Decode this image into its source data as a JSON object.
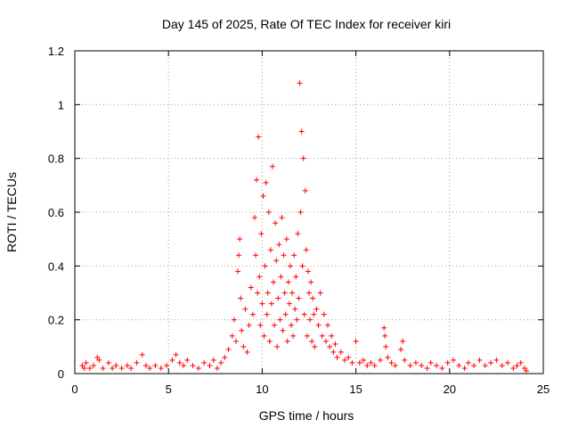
{
  "chart_data": {
    "type": "scatter",
    "title": "Day 145 of 2025, Rate Of TEC Index for receiver kiri",
    "xlabel": "GPS time / hours",
    "ylabel": "ROTI / TECUs",
    "xlim": [
      0,
      25
    ],
    "ylim": [
      0,
      1.2
    ],
    "xticks": [
      "0",
      "5",
      "10",
      "15",
      "20",
      "25"
    ],
    "yticks": [
      "0",
      "0.2",
      "0.4",
      "0.6",
      "0.8",
      "1",
      "1.2"
    ],
    "grid": true,
    "marker": "plus",
    "series_color": "#ff0000",
    "series": [
      {
        "points": [
          [
            0.4,
            0.03
          ],
          [
            0.5,
            0.02
          ],
          [
            0.6,
            0.04
          ],
          [
            0.8,
            0.02
          ],
          [
            1.0,
            0.03
          ],
          [
            1.2,
            0.06
          ],
          [
            1.3,
            0.05
          ],
          [
            1.5,
            0.02
          ],
          [
            1.8,
            0.04
          ],
          [
            2.0,
            0.02
          ],
          [
            2.2,
            0.03
          ],
          [
            2.5,
            0.02
          ],
          [
            2.8,
            0.03
          ],
          [
            3.0,
            0.02
          ],
          [
            3.3,
            0.04
          ],
          [
            3.6,
            0.07
          ],
          [
            3.8,
            0.03
          ],
          [
            4.0,
            0.02
          ],
          [
            4.3,
            0.03
          ],
          [
            4.6,
            0.02
          ],
          [
            4.9,
            0.03
          ],
          [
            5.2,
            0.05
          ],
          [
            5.4,
            0.07
          ],
          [
            5.6,
            0.04
          ],
          [
            5.8,
            0.03
          ],
          [
            6.0,
            0.05
          ],
          [
            6.3,
            0.03
          ],
          [
            6.6,
            0.02
          ],
          [
            6.9,
            0.04
          ],
          [
            7.2,
            0.03
          ],
          [
            7.4,
            0.05
          ],
          [
            7.6,
            0.02
          ],
          [
            7.8,
            0.04
          ],
          [
            8.0,
            0.06
          ],
          [
            8.2,
            0.09
          ],
          [
            8.4,
            0.14
          ],
          [
            8.5,
            0.2
          ],
          [
            8.6,
            0.12
          ],
          [
            8.7,
            0.38
          ],
          [
            8.75,
            0.44
          ],
          [
            8.8,
            0.5
          ],
          [
            8.85,
            0.28
          ],
          [
            8.9,
            0.16
          ],
          [
            9.0,
            0.1
          ],
          [
            9.1,
            0.24
          ],
          [
            9.2,
            0.08
          ],
          [
            9.3,
            0.18
          ],
          [
            9.4,
            0.32
          ],
          [
            9.5,
            0.22
          ],
          [
            9.6,
            0.58
          ],
          [
            9.65,
            0.44
          ],
          [
            9.7,
            0.72
          ],
          [
            9.75,
            0.3
          ],
          [
            9.8,
            0.88
          ],
          [
            9.85,
            0.36
          ],
          [
            9.9,
            0.18
          ],
          [
            9.95,
            0.52
          ],
          [
            10.0,
            0.26
          ],
          [
            10.05,
            0.66
          ],
          [
            10.1,
            0.14
          ],
          [
            10.15,
            0.4
          ],
          [
            10.2,
            0.71
          ],
          [
            10.25,
            0.22
          ],
          [
            10.3,
            0.3
          ],
          [
            10.35,
            0.6
          ],
          [
            10.4,
            0.12
          ],
          [
            10.45,
            0.46
          ],
          [
            10.5,
            0.26
          ],
          [
            10.55,
            0.77
          ],
          [
            10.6,
            0.34
          ],
          [
            10.65,
            0.18
          ],
          [
            10.7,
            0.56
          ],
          [
            10.75,
            0.42
          ],
          [
            10.8,
            0.1
          ],
          [
            10.85,
            0.28
          ],
          [
            10.9,
            0.48
          ],
          [
            10.95,
            0.2
          ],
          [
            11.0,
            0.36
          ],
          [
            11.05,
            0.58
          ],
          [
            11.1,
            0.16
          ],
          [
            11.15,
            0.44
          ],
          [
            11.2,
            0.3
          ],
          [
            11.25,
            0.22
          ],
          [
            11.3,
            0.5
          ],
          [
            11.35,
            0.12
          ],
          [
            11.4,
            0.34
          ],
          [
            11.45,
            0.26
          ],
          [
            11.5,
            0.4
          ],
          [
            11.55,
            0.18
          ],
          [
            11.6,
            0.3
          ],
          [
            11.65,
            0.14
          ],
          [
            11.7,
            0.44
          ],
          [
            11.75,
            0.24
          ],
          [
            11.8,
            0.36
          ],
          [
            11.85,
            0.2
          ],
          [
            11.9,
            0.52
          ],
          [
            11.95,
            0.28
          ],
          [
            12.0,
            1.08
          ],
          [
            12.05,
            0.6
          ],
          [
            12.1,
            0.9
          ],
          [
            12.15,
            0.4
          ],
          [
            12.2,
            0.8
          ],
          [
            12.25,
            0.22
          ],
          [
            12.3,
            0.68
          ],
          [
            12.35,
            0.46
          ],
          [
            12.4,
            0.14
          ],
          [
            12.45,
            0.38
          ],
          [
            12.5,
            0.3
          ],
          [
            12.55,
            0.2
          ],
          [
            12.6,
            0.34
          ],
          [
            12.65,
            0.12
          ],
          [
            12.7,
            0.28
          ],
          [
            12.75,
            0.22
          ],
          [
            12.8,
            0.1
          ],
          [
            12.9,
            0.24
          ],
          [
            13.0,
            0.18
          ],
          [
            13.1,
            0.3
          ],
          [
            13.2,
            0.14
          ],
          [
            13.3,
            0.22
          ],
          [
            13.4,
            0.12
          ],
          [
            13.5,
            0.18
          ],
          [
            13.6,
            0.1
          ],
          [
            13.7,
            0.14
          ],
          [
            13.8,
            0.08
          ],
          [
            13.9,
            0.11
          ],
          [
            14.0,
            0.06
          ],
          [
            14.2,
            0.08
          ],
          [
            14.4,
            0.05
          ],
          [
            14.6,
            0.06
          ],
          [
            14.8,
            0.04
          ],
          [
            15.0,
            0.12
          ],
          [
            15.2,
            0.04
          ],
          [
            15.4,
            0.05
          ],
          [
            15.6,
            0.03
          ],
          [
            15.8,
            0.04
          ],
          [
            16.0,
            0.03
          ],
          [
            16.3,
            0.05
          ],
          [
            16.5,
            0.17
          ],
          [
            16.55,
            0.14
          ],
          [
            16.6,
            0.1
          ],
          [
            16.7,
            0.06
          ],
          [
            16.9,
            0.04
          ],
          [
            17.1,
            0.03
          ],
          [
            17.4,
            0.09
          ],
          [
            17.5,
            0.12
          ],
          [
            17.6,
            0.05
          ],
          [
            17.9,
            0.03
          ],
          [
            18.2,
            0.04
          ],
          [
            18.5,
            0.03
          ],
          [
            18.8,
            0.02
          ],
          [
            19.0,
            0.04
          ],
          [
            19.3,
            0.03
          ],
          [
            19.6,
            0.02
          ],
          [
            19.9,
            0.04
          ],
          [
            20.2,
            0.05
          ],
          [
            20.5,
            0.03
          ],
          [
            20.8,
            0.02
          ],
          [
            21.0,
            0.04
          ],
          [
            21.3,
            0.03
          ],
          [
            21.6,
            0.05
          ],
          [
            21.9,
            0.03
          ],
          [
            22.2,
            0.04
          ],
          [
            22.5,
            0.05
          ],
          [
            22.8,
            0.03
          ],
          [
            23.1,
            0.04
          ],
          [
            23.4,
            0.02
          ],
          [
            23.6,
            0.03
          ],
          [
            23.8,
            0.04
          ],
          [
            24.0,
            0.02
          ],
          [
            24.1,
            0.01
          ]
        ]
      }
    ]
  }
}
